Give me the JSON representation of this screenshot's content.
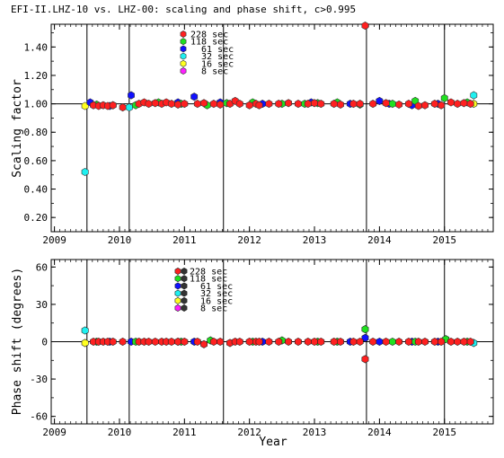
{
  "chart_data": [
    {
      "type": "scatter",
      "title": "EFI-II.LHZ-10 vs. LHZ-00: scaling and phase shift, c>0.995",
      "ylabel": "Scaling factor",
      "xlabel": "",
      "xlim": [
        2008.95,
        2015.75
      ],
      "ylim": [
        0.1,
        1.56
      ],
      "yticks": [
        "0.20",
        "0.40",
        "0.60",
        "0.80",
        "1.00",
        "1.20",
        "1.40"
      ],
      "ytick_values": [
        0.2,
        0.4,
        0.6,
        0.8,
        1.0,
        1.2,
        1.4
      ],
      "xticks": [
        "2009",
        "2010",
        "2011",
        "2012",
        "2013",
        "2014",
        "2015"
      ],
      "xtick_values": [
        2009,
        2010,
        2011,
        2012,
        2013,
        2014,
        2015
      ],
      "reference_line": 1.0,
      "vlines": [
        2009.5,
        2010.15,
        2011.6,
        2013.8,
        2015.0
      ],
      "legend_placement": "top-center",
      "series": [
        {
          "name": "228 sec",
          "color": "#ff2020",
          "points": [
            [
              2009.6,
              0.99
            ],
            [
              2009.68,
              0.985
            ],
            [
              2009.75,
              0.99
            ],
            [
              2009.82,
              0.985
            ],
            [
              2009.9,
              0.99
            ],
            [
              2010.05,
              0.975
            ],
            [
              2010.3,
              1.0
            ],
            [
              2010.38,
              1.01
            ],
            [
              2010.45,
              1.0
            ],
            [
              2010.55,
              1.005
            ],
            [
              2010.65,
              1.0
            ],
            [
              2010.72,
              1.01
            ],
            [
              2010.8,
              1.0
            ],
            [
              2010.9,
              0.995
            ],
            [
              2011.0,
              1.0
            ],
            [
              2011.2,
              1.0
            ],
            [
              2011.3,
              1.005
            ],
            [
              2011.45,
              1.0
            ],
            [
              2011.55,
              0.995
            ],
            [
              2011.7,
              1.0
            ],
            [
              2011.78,
              1.02
            ],
            [
              2011.85,
              1.0
            ],
            [
              2012.0,
              0.99
            ],
            [
              2012.1,
              1.0
            ],
            [
              2012.15,
              0.99
            ],
            [
              2012.3,
              1.0
            ],
            [
              2012.45,
              1.0
            ],
            [
              2012.6,
              1.005
            ],
            [
              2012.75,
              1.0
            ],
            [
              2012.9,
              1.0
            ],
            [
              2013.0,
              1.005
            ],
            [
              2013.1,
              1.0
            ],
            [
              2013.3,
              1.0
            ],
            [
              2013.4,
              0.995
            ],
            [
              2013.6,
              1.0
            ],
            [
              2013.7,
              1.0
            ],
            [
              2013.78,
              1.55
            ],
            [
              2013.9,
              1.0
            ],
            [
              2014.1,
              1.005
            ],
            [
              2014.3,
              0.995
            ],
            [
              2014.45,
              1.0
            ],
            [
              2014.6,
              0.985
            ],
            [
              2014.7,
              0.99
            ],
            [
              2014.85,
              1.0
            ],
            [
              2014.95,
              0.99
            ],
            [
              2015.1,
              1.01
            ],
            [
              2015.2,
              1.0
            ],
            [
              2015.3,
              1.005
            ],
            [
              2015.4,
              1.0
            ]
          ]
        },
        {
          "name": "118 sec",
          "color": "#20e020",
          "points": [
            [
              2009.65,
              0.995
            ],
            [
              2009.9,
              0.99
            ],
            [
              2010.25,
              0.99
            ],
            [
              2010.6,
              1.01
            ],
            [
              2010.95,
              1.0
            ],
            [
              2011.35,
              0.99
            ],
            [
              2011.65,
              1.005
            ],
            [
              2012.05,
              1.01
            ],
            [
              2012.5,
              1.0
            ],
            [
              2012.85,
              1.0
            ],
            [
              2013.05,
              1.005
            ],
            [
              2013.35,
              1.01
            ],
            [
              2013.7,
              0.995
            ],
            [
              2014.2,
              1.0
            ],
            [
              2014.55,
              1.02
            ],
            [
              2015.0,
              1.04
            ],
            [
              2015.35,
              1.01
            ]
          ]
        },
        {
          "name": "61 sec",
          "color": "#1010ff",
          "points": [
            [
              2009.55,
              1.01
            ],
            [
              2009.85,
              0.985
            ],
            [
              2010.18,
              1.06
            ],
            [
              2010.9,
              1.01
            ],
            [
              2011.15,
              1.05
            ],
            [
              2011.55,
              1.01
            ],
            [
              2012.2,
              1.0
            ],
            [
              2012.95,
              1.01
            ],
            [
              2013.55,
              1.0
            ],
            [
              2014.0,
              1.02
            ],
            [
              2014.15,
              1.0
            ],
            [
              2014.5,
              0.99
            ],
            [
              2014.9,
              1.0
            ]
          ]
        },
        {
          "name": "32 sec",
          "color": "#20f0f0",
          "points": [
            [
              2009.47,
              0.52
            ],
            [
              2010.15,
              0.975
            ],
            [
              2015.45,
              1.06
            ]
          ]
        },
        {
          "name": "16 sec",
          "color": "#ffff20",
          "points": [
            [
              2009.47,
              0.985
            ],
            [
              2015.45,
              1.0
            ]
          ]
        },
        {
          "name": "8 sec",
          "color": "#ff20ff",
          "points": []
        }
      ]
    },
    {
      "type": "scatter",
      "title": "",
      "ylabel": "Phase shift (degrees)",
      "xlabel": "Year",
      "xlim": [
        2008.95,
        2015.75
      ],
      "ylim": [
        -66,
        66
      ],
      "yticks": [
        "-60",
        "-30",
        "0",
        "30",
        "60"
      ],
      "ytick_values": [
        -60,
        -30,
        0,
        30,
        60
      ],
      "xticks": [
        "2009",
        "2010",
        "2011",
        "2012",
        "2013",
        "2014",
        "2015"
      ],
      "xtick_values": [
        2009,
        2010,
        2011,
        2012,
        2013,
        2014,
        2015
      ],
      "reference_line": 0,
      "vlines": [
        2009.5,
        2010.15,
        2011.6,
        2013.8,
        2015.0
      ],
      "legend_placement": "top-center",
      "series": [
        {
          "name": "228 sec",
          "color": "#ff2020",
          "points": [
            [
              2009.6,
              0
            ],
            [
              2009.68,
              0
            ],
            [
              2009.75,
              0
            ],
            [
              2009.82,
              0
            ],
            [
              2009.9,
              0
            ],
            [
              2010.05,
              0
            ],
            [
              2010.3,
              0
            ],
            [
              2010.38,
              0
            ],
            [
              2010.45,
              0
            ],
            [
              2010.55,
              0
            ],
            [
              2010.65,
              0
            ],
            [
              2010.72,
              0
            ],
            [
              2010.8,
              0
            ],
            [
              2010.9,
              0
            ],
            [
              2011.0,
              0
            ],
            [
              2011.2,
              0
            ],
            [
              2011.3,
              -2
            ],
            [
              2011.45,
              0
            ],
            [
              2011.55,
              0
            ],
            [
              2011.7,
              -1
            ],
            [
              2011.78,
              0
            ],
            [
              2011.85,
              0
            ],
            [
              2012.0,
              0
            ],
            [
              2012.1,
              0
            ],
            [
              2012.15,
              0
            ],
            [
              2012.3,
              0
            ],
            [
              2012.45,
              0
            ],
            [
              2012.6,
              0
            ],
            [
              2012.75,
              0
            ],
            [
              2012.9,
              0
            ],
            [
              2013.0,
              0
            ],
            [
              2013.1,
              0
            ],
            [
              2013.3,
              0
            ],
            [
              2013.4,
              0
            ],
            [
              2013.6,
              0
            ],
            [
              2013.7,
              0
            ],
            [
              2013.78,
              -14
            ],
            [
              2013.9,
              0
            ],
            [
              2014.1,
              0
            ],
            [
              2014.3,
              0
            ],
            [
              2014.45,
              0
            ],
            [
              2014.6,
              0
            ],
            [
              2014.7,
              0
            ],
            [
              2014.85,
              0
            ],
            [
              2014.95,
              0
            ],
            [
              2015.1,
              0
            ],
            [
              2015.2,
              0
            ],
            [
              2015.3,
              0
            ],
            [
              2015.4,
              0
            ]
          ]
        },
        {
          "name": "118 sec",
          "color": "#20e020",
          "points": [
            [
              2009.65,
              0
            ],
            [
              2010.25,
              0
            ],
            [
              2010.95,
              0
            ],
            [
              2011.4,
              1
            ],
            [
              2012.05,
              0
            ],
            [
              2012.5,
              1
            ],
            [
              2013.05,
              0
            ],
            [
              2013.35,
              0
            ],
            [
              2013.78,
              10
            ],
            [
              2014.2,
              0
            ],
            [
              2014.55,
              0
            ],
            [
              2015.02,
              2
            ],
            [
              2015.35,
              0
            ]
          ]
        },
        {
          "name": "61 sec",
          "color": "#1010ff",
          "points": [
            [
              2009.85,
              0
            ],
            [
              2010.18,
              0
            ],
            [
              2010.9,
              0
            ],
            [
              2011.15,
              0
            ],
            [
              2012.2,
              0
            ],
            [
              2013.55,
              0
            ],
            [
              2013.78,
              3
            ],
            [
              2014.0,
              0
            ],
            [
              2014.5,
              0
            ],
            [
              2014.9,
              0
            ]
          ]
        },
        {
          "name": "32 sec",
          "color": "#20f0f0",
          "points": [
            [
              2009.47,
              9
            ],
            [
              2015.45,
              -1
            ]
          ]
        },
        {
          "name": "16 sec",
          "color": "#ffff20",
          "points": [
            [
              2009.47,
              -1
            ]
          ]
        },
        {
          "name": "8 sec",
          "color": "#ff20ff",
          "points": []
        }
      ]
    }
  ]
}
